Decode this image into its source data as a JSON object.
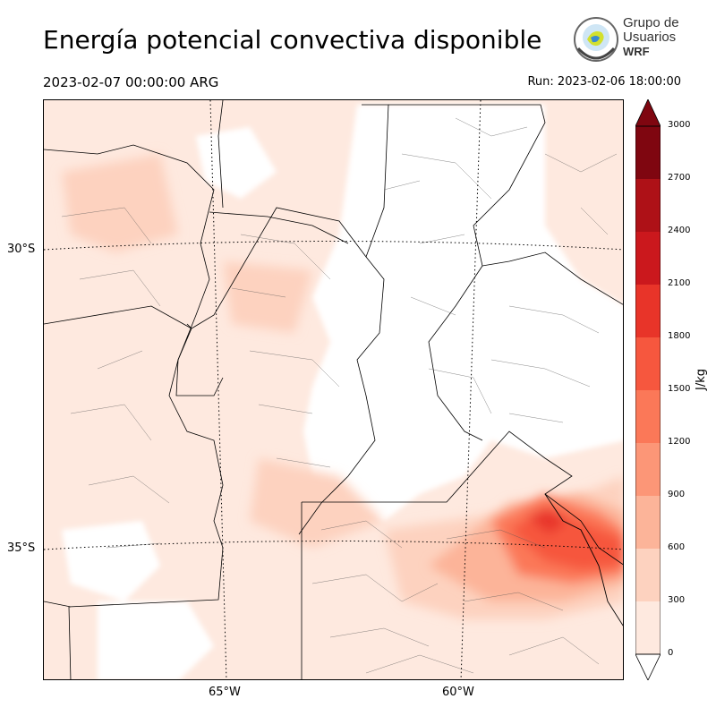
{
  "title": "Energía potencial convectiva disponible",
  "valid_time": "2023-02-07 00:00:00 ARG",
  "run_time": "Run: 2023-02-06 18:00:00",
  "logo": {
    "line1": "Grupo de",
    "line2": "Usuarios",
    "line3": "WRF"
  },
  "map": {
    "lat_labels": [
      "30°S",
      "35°S"
    ],
    "lon_labels": [
      "65°W",
      "60°W"
    ]
  },
  "colorbar": {
    "unit": "J/kg",
    "ticks": [
      "0",
      "300",
      "600",
      "900",
      "1200",
      "1500",
      "1800",
      "2100",
      "2400",
      "2700",
      "3000"
    ],
    "colors": [
      "#fee9df",
      "#fdd2bf",
      "#fcb499",
      "#fc9677",
      "#fb7858",
      "#f6573e",
      "#e83429",
      "#cb181d",
      "#ae1117",
      "#7f0610"
    ]
  }
}
